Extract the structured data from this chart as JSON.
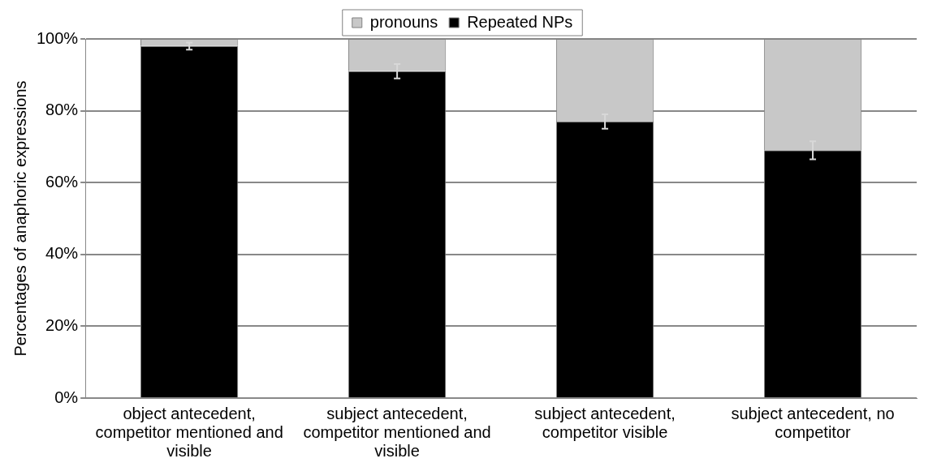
{
  "chart_data": {
    "type": "bar",
    "stacked": true,
    "ylabel": "Percentages of anaphoric expressions",
    "categories": [
      "object antecedent, competitor mentioned and visible",
      "subject antecedent, competitor mentioned and visible",
      "subject antecedent, competitor visible",
      "subject antecedent, no competitor"
    ],
    "series": [
      {
        "name": "Repeated NPs",
        "color": "#000000",
        "values": [
          98,
          91,
          77,
          69
        ],
        "errors": [
          1,
          2,
          2,
          2.5
        ]
      },
      {
        "name": "pronouns",
        "color": "#c8c8c8",
        "values": [
          2,
          9,
          23,
          31
        ]
      }
    ],
    "ylim": [
      0,
      100
    ],
    "yticks": [
      {
        "value": 0,
        "label": "0%"
      },
      {
        "value": 20,
        "label": "20%"
      },
      {
        "value": 40,
        "label": "40%"
      },
      {
        "value": 60,
        "label": "60%"
      },
      {
        "value": 80,
        "label": "80%"
      },
      {
        "value": 100,
        "label": "100%"
      }
    ],
    "grid": "y",
    "legend": "top"
  }
}
